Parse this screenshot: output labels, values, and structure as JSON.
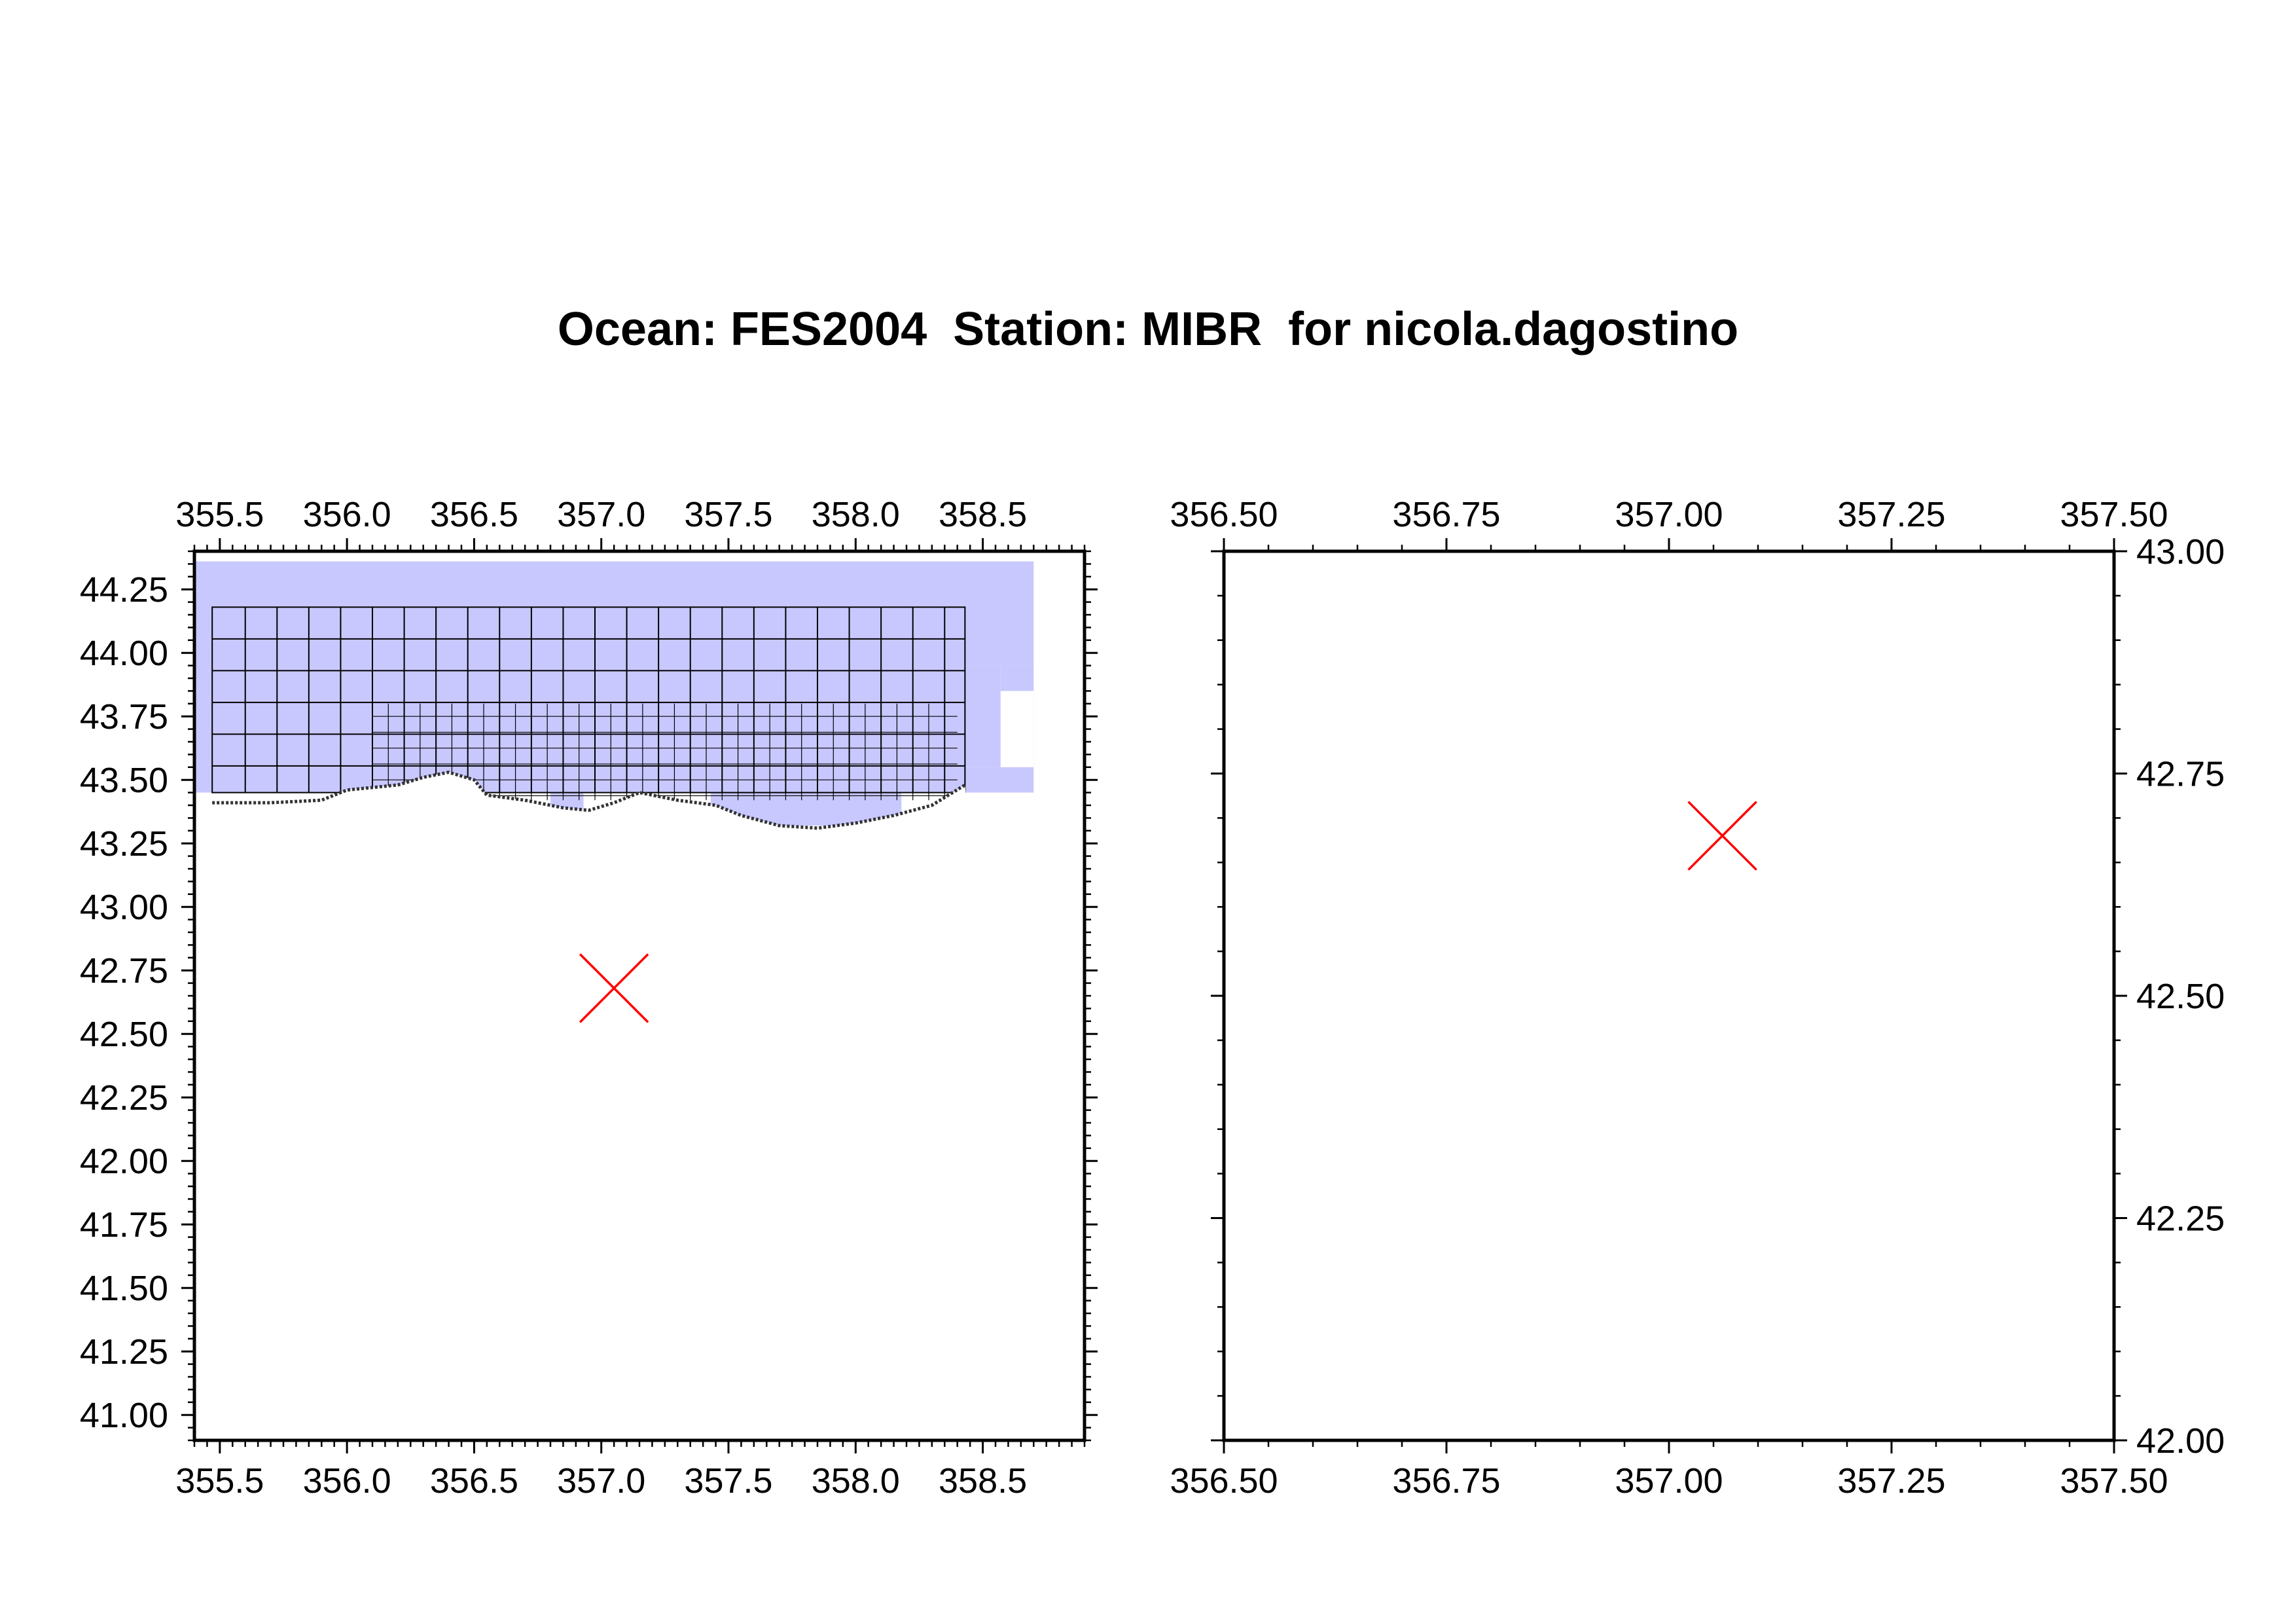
{
  "title": "Ocean: FES2004  Station: MIBR  for nicola.dagostino",
  "colors": {
    "ocean_fill": "#c8c8ff",
    "grid_line": "#000000",
    "marker": "#ff0000",
    "frame": "#000000",
    "coast_dots": "#333333"
  },
  "maps": [
    {
      "name": "overview",
      "x_range": [
        355.4,
        358.9
      ],
      "y_range": [
        40.9,
        44.4
      ],
      "x_ticks": [
        "355.5",
        "356.0",
        "356.5",
        "357.0",
        "357.5",
        "358.0",
        "358.5"
      ],
      "y_ticks": [
        "41.00",
        "41.25",
        "41.50",
        "41.75",
        "42.00",
        "42.25",
        "42.50",
        "42.75",
        "43.00",
        "43.25",
        "43.50",
        "43.75",
        "44.00",
        "44.25"
      ],
      "x_ticks_top": true,
      "x_ticks_bottom": true,
      "y_ticks_left": true,
      "station_marker": {
        "lon": 357.05,
        "lat": 42.68
      }
    },
    {
      "name": "zoom",
      "x_range": [
        356.5,
        357.5
      ],
      "y_range": [
        42.0,
        43.0
      ],
      "x_ticks": [
        "356.50",
        "356.75",
        "357.00",
        "357.25",
        "357.50"
      ],
      "y_ticks": [
        "42.00",
        "42.25",
        "42.50",
        "42.75",
        "43.00"
      ],
      "x_ticks_top": true,
      "x_ticks_bottom": true,
      "y_ticks_right": true,
      "station_marker": {
        "lon": 357.06,
        "lat": 42.68
      }
    }
  ]
}
